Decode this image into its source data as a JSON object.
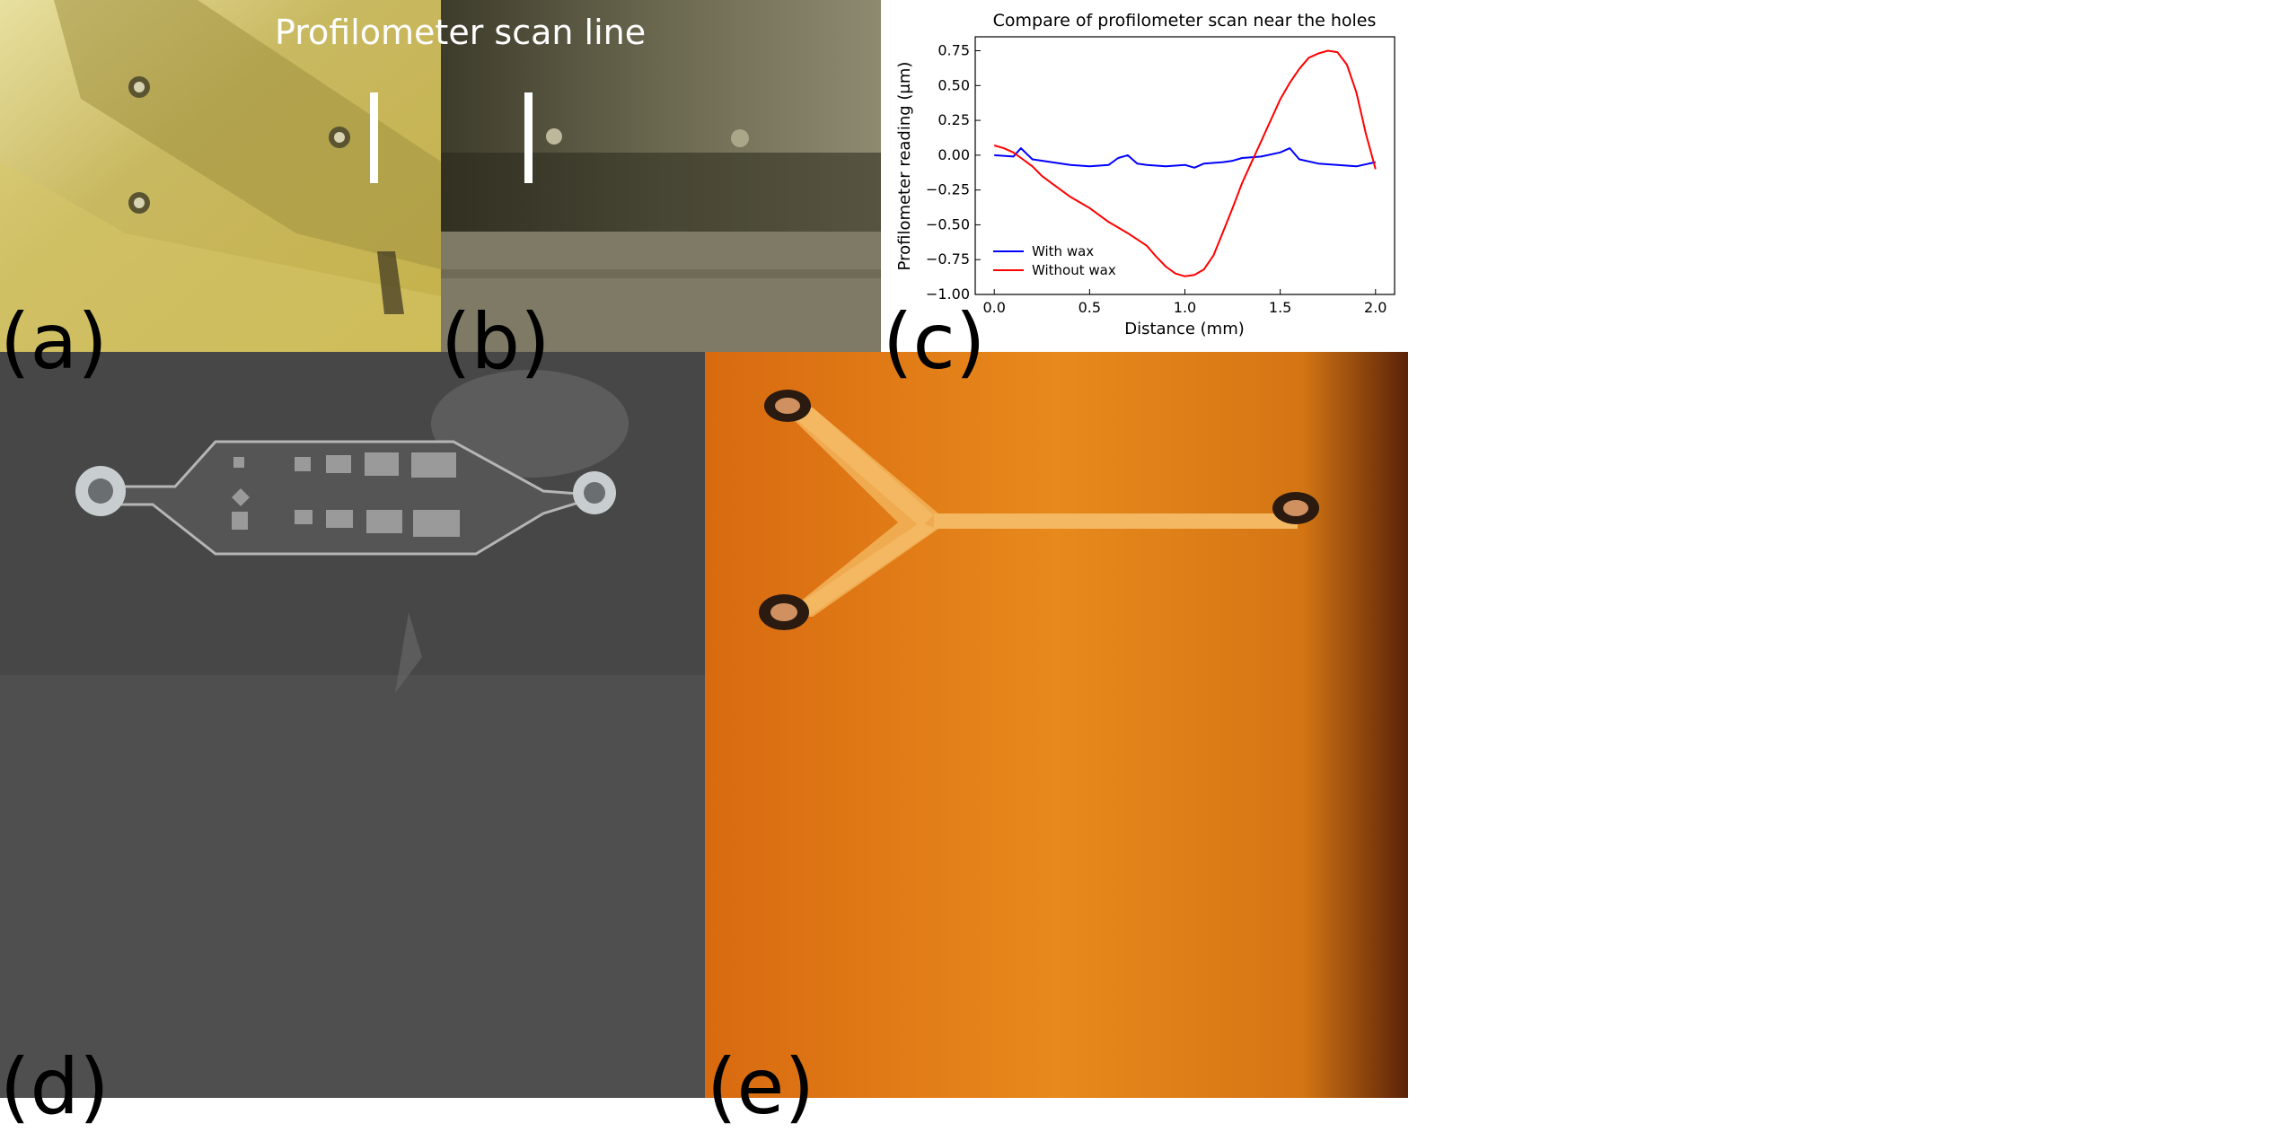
{
  "figure": {
    "panel_labels": [
      "(a)",
      "(b)",
      "(c)",
      "(d)",
      "(e)"
    ],
    "overlay_text": "Profilometer scan line"
  },
  "chart_data": {
    "type": "line",
    "title": "Compare of profilometer scan near the holes",
    "xlabel": "Distance (mm)",
    "ylabel": "Profilometer reading (μm)",
    "xlim": [
      -0.1,
      2.1
    ],
    "ylim": [
      -1.0,
      0.85
    ],
    "xticks": [
      "0.0",
      "0.5",
      "1.0",
      "1.5",
      "2.0"
    ],
    "yticks": [
      "−1.00",
      "−0.75",
      "−0.50",
      "−0.25",
      "0.00",
      "0.25",
      "0.50",
      "0.75"
    ],
    "grid": false,
    "legend_position": "lower-left",
    "series": [
      {
        "name": "With wax",
        "color": "#0000ff",
        "x": [
          0.0,
          0.1,
          0.14,
          0.2,
          0.3,
          0.4,
          0.5,
          0.6,
          0.65,
          0.7,
          0.75,
          0.8,
          0.9,
          1.0,
          1.05,
          1.1,
          1.2,
          1.25,
          1.3,
          1.4,
          1.5,
          1.55,
          1.6,
          1.7,
          1.8,
          1.9,
          2.0
        ],
        "y": [
          0.0,
          -0.01,
          0.05,
          -0.03,
          -0.05,
          -0.07,
          -0.08,
          -0.07,
          -0.02,
          0.0,
          -0.06,
          -0.07,
          -0.08,
          -0.07,
          -0.09,
          -0.06,
          -0.05,
          -0.04,
          -0.02,
          -0.01,
          0.02,
          0.05,
          -0.03,
          -0.06,
          -0.07,
          -0.08,
          -0.05
        ]
      },
      {
        "name": "Without wax",
        "color": "#ff0000",
        "x": [
          0.0,
          0.05,
          0.1,
          0.15,
          0.2,
          0.25,
          0.3,
          0.4,
          0.5,
          0.6,
          0.7,
          0.8,
          0.85,
          0.9,
          0.95,
          1.0,
          1.05,
          1.1,
          1.15,
          1.2,
          1.25,
          1.3,
          1.35,
          1.4,
          1.45,
          1.5,
          1.55,
          1.6,
          1.65,
          1.7,
          1.75,
          1.8,
          1.85,
          1.9,
          1.95,
          2.0
        ],
        "y": [
          0.07,
          0.05,
          0.02,
          -0.03,
          -0.08,
          -0.15,
          -0.2,
          -0.3,
          -0.38,
          -0.48,
          -0.56,
          -0.65,
          -0.73,
          -0.8,
          -0.85,
          -0.87,
          -0.86,
          -0.82,
          -0.72,
          -0.55,
          -0.38,
          -0.2,
          -0.05,
          0.1,
          0.25,
          0.4,
          0.52,
          0.62,
          0.7,
          0.73,
          0.75,
          0.74,
          0.65,
          0.45,
          0.15,
          -0.1
        ]
      }
    ]
  }
}
